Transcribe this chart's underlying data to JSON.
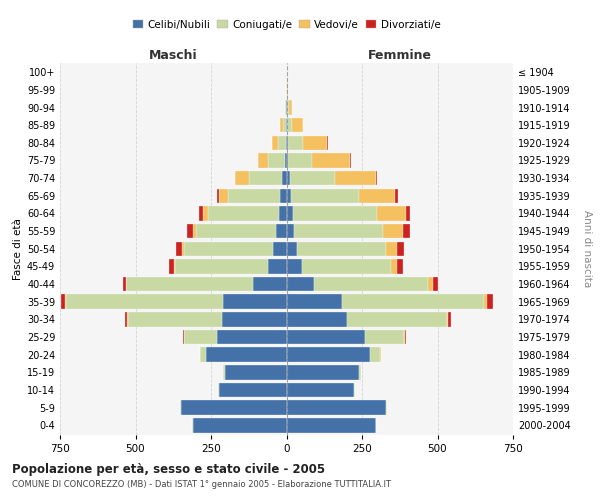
{
  "age_groups": [
    "0-4",
    "5-9",
    "10-14",
    "15-19",
    "20-24",
    "25-29",
    "30-34",
    "35-39",
    "40-44",
    "45-49",
    "50-54",
    "55-59",
    "60-64",
    "65-69",
    "70-74",
    "75-79",
    "80-84",
    "85-89",
    "90-94",
    "95-99",
    "100+"
  ],
  "birth_years": [
    "2000-2004",
    "1995-1999",
    "1990-1994",
    "1985-1989",
    "1980-1984",
    "1975-1979",
    "1970-1974",
    "1965-1969",
    "1960-1964",
    "1955-1959",
    "1950-1954",
    "1945-1949",
    "1940-1944",
    "1935-1939",
    "1930-1934",
    "1925-1929",
    "1920-1924",
    "1915-1919",
    "1910-1914",
    "1905-1909",
    "≤ 1904"
  ],
  "males": {
    "celibe": [
      310,
      350,
      225,
      205,
      265,
      230,
      215,
      210,
      110,
      60,
      45,
      35,
      25,
      20,
      15,
      5,
      3,
      2,
      1,
      0,
      0
    ],
    "coniugato": [
      2,
      2,
      2,
      5,
      20,
      110,
      310,
      520,
      420,
      310,
      295,
      265,
      235,
      175,
      110,
      55,
      25,
      10,
      3,
      1,
      0
    ],
    "vedovo": [
      0,
      0,
      0,
      0,
      0,
      1,
      2,
      3,
      2,
      3,
      5,
      10,
      15,
      30,
      45,
      35,
      20,
      8,
      2,
      0,
      0
    ],
    "divorziato": [
      0,
      0,
      0,
      0,
      0,
      3,
      8,
      15,
      10,
      15,
      20,
      20,
      15,
      5,
      2,
      0,
      0,
      0,
      0,
      0,
      0
    ]
  },
  "females": {
    "nubile": [
      295,
      330,
      225,
      240,
      275,
      260,
      200,
      185,
      90,
      50,
      35,
      25,
      20,
      15,
      10,
      6,
      4,
      3,
      2,
      0,
      0
    ],
    "coniugata": [
      2,
      2,
      2,
      8,
      35,
      130,
      330,
      470,
      380,
      295,
      295,
      295,
      280,
      225,
      150,
      80,
      50,
      15,
      5,
      2,
      0
    ],
    "vedova": [
      0,
      0,
      0,
      0,
      2,
      3,
      5,
      10,
      15,
      20,
      35,
      65,
      95,
      120,
      135,
      125,
      80,
      35,
      10,
      2,
      0
    ],
    "divorziata": [
      0,
      0,
      0,
      0,
      1,
      3,
      10,
      20,
      15,
      20,
      25,
      25,
      15,
      10,
      5,
      3,
      2,
      0,
      0,
      0,
      0
    ]
  },
  "colors": {
    "celibe": "#4472a8",
    "coniugato": "#c8d9a4",
    "vedovo": "#f5c060",
    "divorziato": "#cc2222"
  },
  "xlim": [
    -750,
    750
  ],
  "title": "Popolazione per età, sesso e stato civile - 2005",
  "subtitle": "COMUNE DI CONCOREZZO (MB) - Dati ISTAT 1° gennaio 2005 - Elaborazione TUTTITALIA.IT",
  "ylabel_left": "Fasce di età",
  "ylabel_right": "Anni di nascita",
  "label_maschi": "Maschi",
  "label_femmine": "Femmine",
  "xticks": [
    -750,
    -500,
    -250,
    0,
    250,
    500,
    750
  ],
  "xticklabels": [
    "750",
    "500",
    "250",
    "0",
    "250",
    "500",
    "750"
  ],
  "legend_labels": [
    "Celibi/Nubili",
    "Coniugati/e",
    "Vedovi/e",
    "Divorziati/e"
  ],
  "bg_color": "#f5f5f5"
}
